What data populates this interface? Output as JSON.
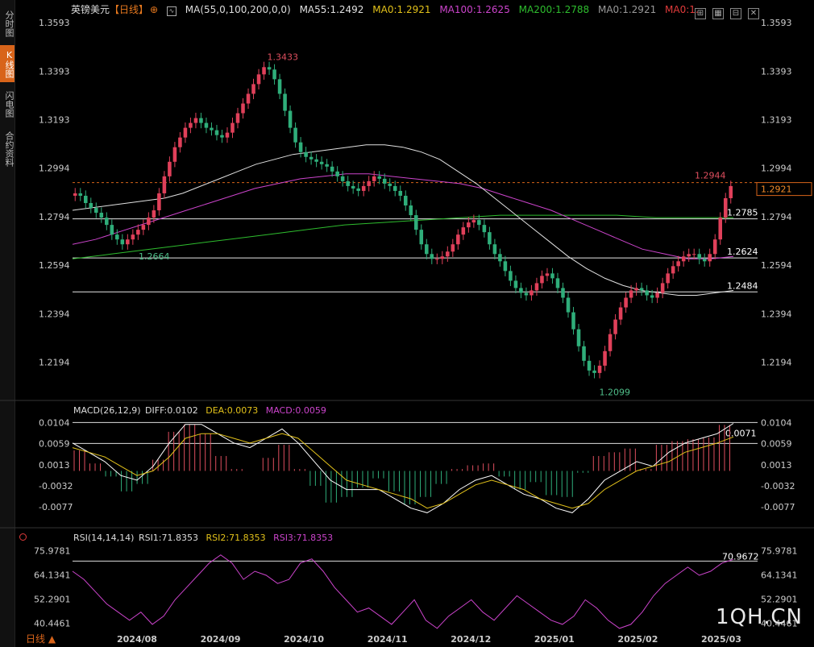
{
  "sidebar": {
    "tabs": [
      {
        "label": "分时图",
        "active": false
      },
      {
        "label": "K线图",
        "active": true
      },
      {
        "label": "闪电图",
        "active": false
      },
      {
        "label": "合约资料",
        "active": false
      }
    ]
  },
  "header": {
    "symbol": "英镑美元",
    "period": "【日线】",
    "ma_label": "MA(55,0,100,200,0,0)",
    "ma55": "MA55:1.2492",
    "ma0": "MA0:1.2921",
    "ma100": "MA100:1.2625",
    "ma200": "MA200:1.2788",
    "ma0b": "MA0:1.2921",
    "ma0c": "MA0:1.",
    "colors": {
      "ma55": "#e0e0e0",
      "ma0": "#e3c21a",
      "ma100": "#cc44cc",
      "ma200": "#2ebd2e",
      "ma0c": "#e03b3b"
    }
  },
  "macd_header": {
    "name": "MACD(26,12,9)",
    "diff": "DIFF:0.0102",
    "dea": "DEA:0.0073",
    "macd": "MACD:0.0059"
  },
  "rsi_header": {
    "name": "RSI(14,14,14)",
    "rsi1": "RSI1:71.8353",
    "rsi2": "RSI2:71.8353",
    "rsi3": "RSI3:71.8353"
  },
  "bottom_tab": "日线",
  "logo": "1QH.CN",
  "chart_data": [
    {
      "type": "candlestick",
      "title": "英镑美元【日线】",
      "price_ticks": [
        "1.3593",
        "1.3393",
        "1.3193",
        "1.2994",
        "1.2794",
        "1.2594",
        "1.2394",
        "1.2194"
      ],
      "price_tick_values": [
        1.3593,
        1.3393,
        1.3193,
        1.2994,
        1.2794,
        1.2594,
        1.2394,
        1.2194
      ],
      "ylim": [
        1.206,
        1.364
      ],
      "x_labels": [
        "2024/08",
        "2024/09",
        "2024/10",
        "2024/11",
        "2024/12",
        "2025/01",
        "2025/02",
        "2025/03"
      ],
      "annotations": {
        "high": "1.3433",
        "low": "1.2099",
        "recent_high": "1.2944",
        "mid_low": "1.2664"
      },
      "current_price": "1.2921",
      "horizontal_levels": [
        {
          "label": "1.2785",
          "value": 1.2785
        },
        {
          "label": "1.2624",
          "value": 1.2624
        },
        {
          "label": "1.2484",
          "value": 1.2484
        }
      ],
      "closes": [
        1.289,
        1.288,
        1.285,
        1.283,
        1.281,
        1.279,
        1.276,
        1.272,
        1.27,
        1.268,
        1.27,
        1.272,
        1.274,
        1.276,
        1.279,
        1.282,
        1.289,
        1.296,
        1.302,
        1.308,
        1.312,
        1.316,
        1.318,
        1.32,
        1.318,
        1.316,
        1.315,
        1.313,
        1.312,
        1.314,
        1.318,
        1.322,
        1.326,
        1.33,
        1.334,
        1.338,
        1.341,
        1.34,
        1.336,
        1.33,
        1.323,
        1.316,
        1.31,
        1.306,
        1.304,
        1.303,
        1.302,
        1.301,
        1.3,
        1.298,
        1.296,
        1.294,
        1.292,
        1.291,
        1.29,
        1.292,
        1.294,
        1.296,
        1.295,
        1.293,
        1.292,
        1.29,
        1.288,
        1.284,
        1.28,
        1.274,
        1.268,
        1.264,
        1.262,
        1.262,
        1.263,
        1.265,
        1.268,
        1.272,
        1.275,
        1.277,
        1.278,
        1.276,
        1.273,
        1.268,
        1.264,
        1.261,
        1.257,
        1.253,
        1.25,
        1.248,
        1.247,
        1.249,
        1.252,
        1.255,
        1.256,
        1.254,
        1.25,
        1.246,
        1.24,
        1.233,
        1.226,
        1.22,
        1.216,
        1.215,
        1.218,
        1.224,
        1.231,
        1.237,
        1.242,
        1.246,
        1.249,
        1.25,
        1.249,
        1.247,
        1.246,
        1.248,
        1.252,
        1.256,
        1.259,
        1.261,
        1.263,
        1.264,
        1.264,
        1.262,
        1.261,
        1.264,
        1.27,
        1.279,
        1.287,
        1.292
      ],
      "ma55": [
        1.282,
        1.283,
        1.284,
        1.285,
        1.286,
        1.287,
        1.289,
        1.292,
        1.295,
        1.298,
        1.301,
        1.303,
        1.305,
        1.306,
        1.307,
        1.308,
        1.309,
        1.309,
        1.308,
        1.306,
        1.303,
        1.298,
        1.293,
        1.287,
        1.281,
        1.275,
        1.269,
        1.263,
        1.258,
        1.254,
        1.251,
        1.249,
        1.248,
        1.247,
        1.247,
        1.248,
        1.249
      ],
      "ma100": [
        1.268,
        1.27,
        1.273,
        1.276,
        1.279,
        1.282,
        1.285,
        1.288,
        1.291,
        1.293,
        1.295,
        1.296,
        1.297,
        1.297,
        1.296,
        1.295,
        1.294,
        1.293,
        1.291,
        1.288,
        1.285,
        1.282,
        1.278,
        1.274,
        1.27,
        1.266,
        1.264,
        1.262,
        1.262,
        1.263
      ],
      "ma200": [
        1.262,
        1.264,
        1.266,
        1.268,
        1.27,
        1.272,
        1.274,
        1.276,
        1.277,
        1.278,
        1.279,
        1.28,
        1.28,
        1.28,
        1.28,
        1.279,
        1.279,
        1.279
      ],
      "macd_ticks": [
        "0.0104",
        "0.0059",
        "0.0013",
        "-0.0032",
        "-0.0077"
      ],
      "macd_tick_values": [
        0.0104,
        0.0059,
        0.0013,
        -0.0032,
        -0.0077
      ],
      "macd_ylim": [
        -0.011,
        0.0115
      ],
      "macd_level_label": "0.0071",
      "diff": [
        0.006,
        0.004,
        0.002,
        -0.001,
        -0.002,
        0.001,
        0.006,
        0.01,
        0.01,
        0.008,
        0.006,
        0.005,
        0.007,
        0.009,
        0.006,
        0.002,
        -0.002,
        -0.004,
        -0.004,
        -0.004,
        -0.006,
        -0.008,
        -0.009,
        -0.007,
        -0.004,
        -0.002,
        -0.001,
        -0.003,
        -0.005,
        -0.006,
        -0.008,
        -0.009,
        -0.006,
        -0.002,
        0.0,
        0.002,
        0.001,
        0.004,
        0.006,
        0.007,
        0.008,
        0.0102
      ],
      "dea": [
        0.005,
        0.004,
        0.003,
        0.001,
        -0.001,
        0.0,
        0.003,
        0.007,
        0.008,
        0.008,
        0.007,
        0.006,
        0.007,
        0.008,
        0.007,
        0.004,
        0.001,
        -0.002,
        -0.003,
        -0.004,
        -0.005,
        -0.006,
        -0.008,
        -0.007,
        -0.005,
        -0.003,
        -0.002,
        -0.003,
        -0.004,
        -0.006,
        -0.007,
        -0.008,
        -0.007,
        -0.004,
        -0.002,
        0.0,
        0.001,
        0.002,
        0.004,
        0.005,
        0.006,
        0.0073
      ],
      "rsi_ticks": [
        "75.9781",
        "64.1341",
        "52.2901",
        "40.4461"
      ],
      "rsi_tick_values": [
        75.9781,
        64.1341,
        52.2901,
        40.4461
      ],
      "rsi_ylim": [
        36,
        79
      ],
      "rsi_level_label": "70.9672",
      "rsi": [
        66,
        62,
        56,
        50,
        46,
        42,
        46,
        40,
        44,
        52,
        58,
        64,
        70,
        74,
        70,
        62,
        66,
        64,
        60,
        62,
        70,
        72,
        66,
        58,
        52,
        46,
        48,
        44,
        40,
        46,
        52,
        42,
        38,
        44,
        48,
        52,
        46,
        42,
        48,
        54,
        50,
        46,
        42,
        40,
        44,
        52,
        48,
        42,
        38,
        40,
        46,
        54,
        60,
        64,
        68,
        64,
        66,
        70,
        71.8
      ]
    }
  ]
}
